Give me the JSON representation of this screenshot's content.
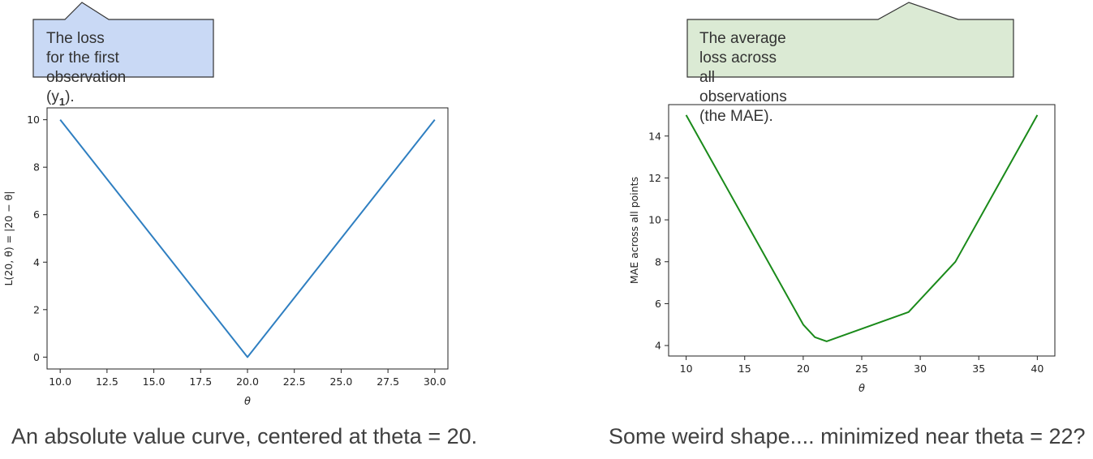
{
  "callouts": {
    "left": {
      "text_line1": "The loss for the first",
      "text_line2": "observation (y",
      "subscript": "1",
      "text_suffix": ").",
      "fill": "#c9d9f5"
    },
    "right": {
      "text_line1": "The average loss across all observations",
      "text_line2": "(the MAE).",
      "fill": "#dbead4"
    }
  },
  "captions": {
    "left": "An absolute value curve, centered at theta = 20.",
    "right": "Some weird shape.... minimized near theta = 22?"
  },
  "chart_data": [
    {
      "type": "line",
      "title": "",
      "xlabel": "θ",
      "ylabel": "L(20, θ) = |20 − θ|",
      "xlim": [
        9.3,
        30.7
      ],
      "ylim": [
        -0.5,
        10.5
      ],
      "xticks": [
        10.0,
        12.5,
        15.0,
        17.5,
        20.0,
        22.5,
        25.0,
        27.5,
        30.0
      ],
      "xtick_labels": [
        "10.0",
        "12.5",
        "15.0",
        "17.5",
        "20.0",
        "22.5",
        "25.0",
        "27.5",
        "30.0"
      ],
      "yticks": [
        0,
        2,
        4,
        6,
        8,
        10
      ],
      "ytick_labels": [
        "0",
        "2",
        "4",
        "6",
        "8",
        "10"
      ],
      "color": "#2f7fc1",
      "series": [
        {
          "x": [
            10,
            20,
            30
          ],
          "y": [
            10,
            0,
            10
          ]
        }
      ],
      "grid": false
    },
    {
      "type": "line",
      "title": "",
      "xlabel": "θ",
      "ylabel": "MAE across all points",
      "xlim": [
        8.5,
        41.5
      ],
      "ylim": [
        3.5,
        15.5
      ],
      "xticks": [
        10,
        15,
        20,
        25,
        30,
        35,
        40
      ],
      "xtick_labels": [
        "10",
        "15",
        "20",
        "25",
        "30",
        "35",
        "40"
      ],
      "yticks": [
        4,
        6,
        8,
        10,
        12,
        14
      ],
      "ytick_labels": [
        "4",
        "6",
        "8",
        "10",
        "12",
        "14"
      ],
      "color": "#1a8a1a",
      "series": [
        {
          "x": [
            10,
            20,
            21,
            22,
            29,
            33,
            40
          ],
          "y": [
            15,
            5,
            4.4,
            4.2,
            5.6,
            8,
            15
          ]
        }
      ],
      "grid": false
    }
  ]
}
